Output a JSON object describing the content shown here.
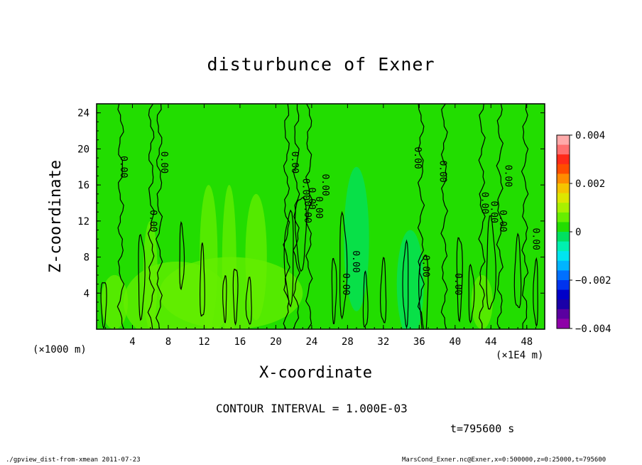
{
  "chart_data": {
    "type": "heatmap",
    "title": "disturbunce of Exner",
    "xlabel": "X-coordinate",
    "ylabel": "Z-coordinate",
    "xlim": [
      0,
      500000
    ],
    "ylim": [
      0,
      25000
    ],
    "x_ticks": [
      "4",
      "8",
      "12",
      "16",
      "20",
      "24",
      "28",
      "32",
      "36",
      "40",
      "44",
      "48"
    ],
    "y_ticks": [
      "4",
      "8",
      "12",
      "16",
      "20",
      "24"
    ],
    "x_unit_left": "(×1000 m)",
    "x_unit_right": "(×1E4 m)",
    "colorbar": {
      "labels": [
        "0.004",
        "0.002",
        "0",
        "−0.002",
        "−0.004"
      ],
      "colors": [
        "#ffaaaa",
        "#ff7070",
        "#ff2a1a",
        "#ff4d00",
        "#ff8c00",
        "#f5c400",
        "#dde600",
        "#a8f000",
        "#66ee00",
        "#22dd00",
        "#00e060",
        "#00f0b0",
        "#00e4f0",
        "#00b4ff",
        "#0070ff",
        "#0033ee",
        "#0000c8",
        "#1a00a8",
        "#5a00a0",
        "#8e00a8"
      ]
    },
    "contour_interval": "CONTOUR INTERVAL = 1.000E-03",
    "contour_labels": [
      "0.00",
      "0.00",
      "0.00",
      "0.00",
      "0.00",
      "0.00",
      "0.00",
      "0.00",
      "0.00",
      "0.00",
      "0.00",
      "0.00",
      "0.00",
      "0.00",
      "0.00",
      "0.00",
      "0.00",
      "0.00",
      "0.00",
      "0.00"
    ]
  },
  "time_label": "t=795600 s",
  "footer_left": "./gpview_dist-from-xmean  2011-07-23",
  "footer_right": "MarsCond_Exner.nc@Exner,x=0:500000,z=0:25000,t=795600"
}
